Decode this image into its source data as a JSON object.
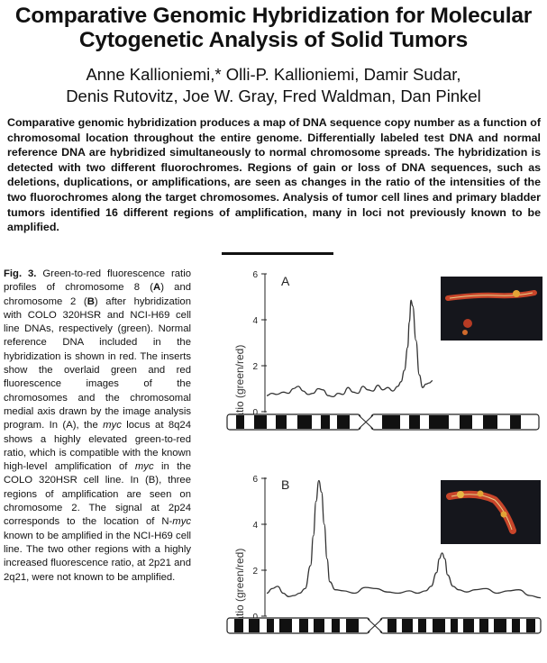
{
  "title": "Comparative Genomic Hybridization for Molecular Cytogenetic Analysis of Solid Tumors",
  "authors": {
    "line1": "Anne Kallioniemi,* Olli-P. Kallioniemi, Damir Sudar,",
    "line2": "Denis Rutovitz, Joe W. Gray, Fred Waldman, Dan Pinkel"
  },
  "abstract": "Comparative genomic hybridization produces a map of DNA sequence copy number as a function of chromosomal location throughout the entire genome. Differentially labeled test DNA and normal reference DNA are hybridized simultaneously to normal chromosome spreads. The hybridization is detected with two different fluorochromes. Regions of gain or loss of DNA sequences, such as deletions, duplications, or amplifications, are seen as changes in the ratio of the intensities of the two fluorochromes along the target chromosomes. Analysis of tumor cell lines and primary bladder tumors identified 16 different regions of amplification, many in loci not previously known to be amplified.",
  "caption": {
    "label": "Fig. 3.",
    "t1": " Green-to-red fluorescence ratio profiles of chromosome 8 (",
    "a1": "A",
    "t2": ") and chromosome 2 (",
    "b1": "B",
    "t3": ") after hybridization with COLO 320HSR and NCI-H69 cell line DNAs, respectively (green). Normal reference DNA included in the hybridization is shown in red. The inserts show the overlaid green and red fluorescence images of the chromosomes and the chromosomal medial axis drawn by the image analysis program. In (A), the ",
    "myc1": "myc",
    "t4": " locus at 8q24 shows a highly elevated green-to-red ratio, which is compatible with the known high-level amplification of ",
    "myc2": "myc",
    "t5": " in the COLO 320HSR cell line. In (B), three regions of amplification are seen on chromosome 2. The signal at 2p24 corresponds to the location of N-",
    "myc3": "myc",
    "t6": " known to be amplified in the NCI-H69 cell line. The two other regions with a highly increased fluorescence ratio, at 2p21 and 2q21, were not known to be amplified."
  },
  "chart_data": [
    {
      "type": "line",
      "panel": "A",
      "ylabel": "Ratio (green/red)",
      "ylim": [
        0,
        6
      ],
      "yticks": [
        "0",
        "2",
        "4",
        "6"
      ],
      "x": [
        0,
        0.03,
        0.06,
        0.1,
        0.13,
        0.16,
        0.19,
        0.22,
        0.25,
        0.28,
        0.31,
        0.34,
        0.37,
        0.4,
        0.43,
        0.46,
        0.49,
        0.52,
        0.55,
        0.58,
        0.61,
        0.64,
        0.67,
        0.7,
        0.73,
        0.76,
        0.79,
        0.81,
        0.83,
        0.85,
        0.86,
        0.87,
        0.88,
        0.9,
        0.92,
        0.94,
        0.96,
        0.98,
        1.0
      ],
      "y": [
        0.7,
        0.8,
        0.75,
        0.85,
        0.8,
        1.0,
        1.1,
        0.9,
        0.75,
        0.8,
        1.0,
        0.95,
        0.7,
        0.65,
        0.8,
        0.75,
        1.05,
        0.85,
        0.8,
        1.1,
        0.95,
        0.9,
        1.15,
        0.95,
        1.05,
        0.9,
        1.1,
        1.3,
        1.8,
        2.8,
        3.9,
        4.85,
        4.6,
        3.1,
        1.6,
        1.05,
        1.2,
        1.25,
        1.35
      ]
    },
    {
      "type": "line",
      "panel": "B",
      "ylabel": "Ratio (green/red)",
      "ylim": [
        0,
        6
      ],
      "yticks": [
        "0",
        "2",
        "4",
        "6"
      ],
      "x": [
        0,
        0.02,
        0.04,
        0.06,
        0.08,
        0.1,
        0.12,
        0.14,
        0.16,
        0.17,
        0.18,
        0.19,
        0.2,
        0.21,
        0.22,
        0.23,
        0.25,
        0.28,
        0.32,
        0.36,
        0.4,
        0.44,
        0.48,
        0.52,
        0.55,
        0.58,
        0.6,
        0.62,
        0.63,
        0.64,
        0.65,
        0.66,
        0.68,
        0.7,
        0.73,
        0.76,
        0.8,
        0.84,
        0.88,
        0.92,
        0.96,
        1.0
      ],
      "y": [
        1.0,
        1.2,
        1.3,
        1.0,
        0.85,
        0.9,
        1.0,
        1.2,
        2.2,
        3.5,
        5.0,
        5.9,
        5.4,
        4.0,
        2.5,
        1.5,
        1.15,
        1.1,
        1.0,
        1.25,
        1.2,
        1.05,
        1.0,
        1.1,
        1.0,
        1.1,
        1.3,
        1.9,
        2.5,
        2.75,
        2.5,
        1.8,
        1.3,
        1.15,
        1.05,
        1.15,
        1.2,
        1.0,
        1.1,
        1.15,
        0.9,
        0.8
      ]
    }
  ]
}
